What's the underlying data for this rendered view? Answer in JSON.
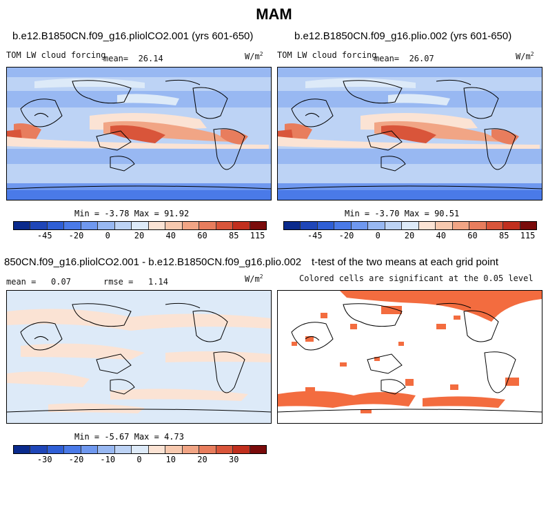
{
  "figure": {
    "title": "MAM"
  },
  "panels": {
    "p1": {
      "title": "b.e12.B1850CN.f09_g16.pliolCO2.001 (yrs 601-650)",
      "variable": "TOM LW cloud forcing",
      "mean_label": "mean=",
      "mean_value": "26.14",
      "units": "W/m",
      "units_exp": "2",
      "min_label": "Min =",
      "min_value": "-3.78",
      "max_label": "Max =",
      "max_value": "91.92"
    },
    "p2": {
      "title": "b.e12.B1850CN.f09_g16.plio.002 (yrs 601-650)",
      "variable": "TOM LW cloud forcing",
      "mean_label": "mean=",
      "mean_value": "26.07",
      "units": "W/m",
      "units_exp": "2",
      "min_label": "Min =",
      "min_value": "-3.70",
      "max_label": "Max =",
      "max_value": "90.51"
    },
    "p3": {
      "title": "850CN.f09_g16.pliolCO2.001 - b.e12.B1850CN.f09_g16.plio.002",
      "mean_label": "mean =",
      "mean_value": "0.07",
      "rmse_label": "rmse =",
      "rmse_value": "1.14",
      "units": "W/m",
      "units_exp": "2",
      "min_label": "Min =",
      "min_value": "-5.67",
      "max_label": "Max =",
      "max_value": "4.73"
    },
    "p4": {
      "title": "t-test of the two means at each grid point",
      "note": "Colored cells are significant at the 0.05 level"
    }
  },
  "colorbars": {
    "abs": {
      "colors": [
        "#0a2a8c",
        "#1f46b8",
        "#2f5fd6",
        "#4a7ae8",
        "#6f98ef",
        "#98b8f2",
        "#bdd3f5",
        "#ddeaf8",
        "#fbe3d4",
        "#f7c9af",
        "#f1a585",
        "#e87d5d",
        "#d9553a",
        "#c12f1e",
        "#7a0b0b"
      ],
      "ticks": [
        "-45",
        "-20",
        "0",
        "20",
        "40",
        "60",
        "85",
        "115"
      ]
    },
    "diff": {
      "colors": [
        "#0a2a8c",
        "#1f46b8",
        "#2f5fd6",
        "#4a7ae8",
        "#6f98ef",
        "#98b8f2",
        "#bdd3f5",
        "#ddeaf8",
        "#fbe3d4",
        "#f7c9af",
        "#f1a585",
        "#e87d5d",
        "#d9553a",
        "#c12f1e",
        "#7a0b0b"
      ],
      "ticks": [
        "-30",
        "-20",
        "-10",
        "0",
        "10",
        "20",
        "30"
      ]
    }
  },
  "chart_data": [
    {
      "type": "heatmap",
      "title": "b.e12.B1850CN.f09_g16.pliolCO2.001 (yrs 601-650)",
      "variable": "TOM LW cloud forcing",
      "units": "W/m^2",
      "mean": 26.14,
      "min": -3.78,
      "max": 91.92,
      "colorbar_ticks": [
        -45,
        -20,
        0,
        20,
        40,
        60,
        85,
        115
      ]
    },
    {
      "type": "heatmap",
      "title": "b.e12.B1850CN.f09_g16.plio.002 (yrs 601-650)",
      "variable": "TOM LW cloud forcing",
      "units": "W/m^2",
      "mean": 26.07,
      "min": -3.7,
      "max": 90.51,
      "colorbar_ticks": [
        -45,
        -20,
        0,
        20,
        40,
        60,
        85,
        115
      ]
    },
    {
      "type": "heatmap",
      "title": "850CN.f09_g16.pliolCO2.001 - b.e12.B1850CN.f09_g16.plio.002",
      "units": "W/m^2",
      "mean": 0.07,
      "rmse": 1.14,
      "min": -5.67,
      "max": 4.73,
      "colorbar_ticks": [
        -30,
        -20,
        -10,
        0,
        10,
        20,
        30
      ]
    },
    {
      "type": "heatmap",
      "title": "t-test of the two means at each grid point",
      "note": "Colored cells are significant at the 0.05 level",
      "significant_color": "#f36c3f"
    }
  ]
}
